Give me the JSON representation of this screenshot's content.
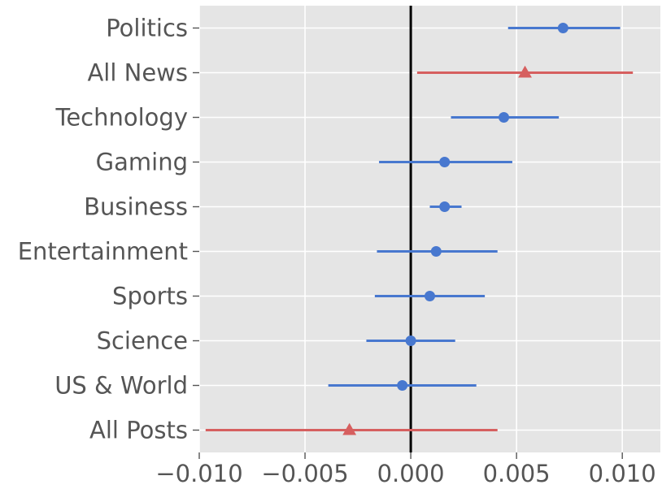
{
  "chart_data": {
    "type": "dot-errorbar",
    "title": "",
    "xlabel": "",
    "ylabel": "",
    "xlim": [
      -0.01,
      0.0118
    ],
    "x_ticks": [
      -0.01,
      -0.005,
      0.0,
      0.005,
      0.01
    ],
    "x_tick_labels": [
      "−0.010",
      "−0.005",
      "0.000",
      "0.005",
      "0.010"
    ],
    "reference_line_x": 0.0,
    "grid": true,
    "background": "#e5e5e5",
    "grid_color": "#ffffff",
    "rows": [
      {
        "label": "Politics",
        "estimate": 0.0072,
        "low": 0.0046,
        "high": 0.0099,
        "color": "#4878cf",
        "marker": "circle"
      },
      {
        "label": "All News",
        "estimate": 0.0054,
        "low": 0.0003,
        "high": 0.0105,
        "color": "#d65f5f",
        "marker": "triangle"
      },
      {
        "label": "Technology",
        "estimate": 0.0044,
        "low": 0.0019,
        "high": 0.007,
        "color": "#4878cf",
        "marker": "circle"
      },
      {
        "label": "Gaming",
        "estimate": 0.0016,
        "low": -0.0015,
        "high": 0.0048,
        "color": "#4878cf",
        "marker": "circle"
      },
      {
        "label": "Business",
        "estimate": 0.0016,
        "low": 0.0009,
        "high": 0.0024,
        "color": "#4878cf",
        "marker": "circle"
      },
      {
        "label": "Entertainment",
        "estimate": 0.0012,
        "low": -0.0016,
        "high": 0.0041,
        "color": "#4878cf",
        "marker": "circle"
      },
      {
        "label": "Sports",
        "estimate": 0.0009,
        "low": -0.0017,
        "high": 0.0035,
        "color": "#4878cf",
        "marker": "circle"
      },
      {
        "label": "Science",
        "estimate": 0.0,
        "low": -0.0021,
        "high": 0.0021,
        "color": "#4878cf",
        "marker": "circle"
      },
      {
        "label": "US & World",
        "estimate": -0.0004,
        "low": -0.0039,
        "high": 0.0031,
        "color": "#4878cf",
        "marker": "circle"
      },
      {
        "label": "All Posts",
        "estimate": -0.0029,
        "low": -0.0097,
        "high": 0.0041,
        "color": "#d65f5f",
        "marker": "triangle"
      }
    ]
  }
}
